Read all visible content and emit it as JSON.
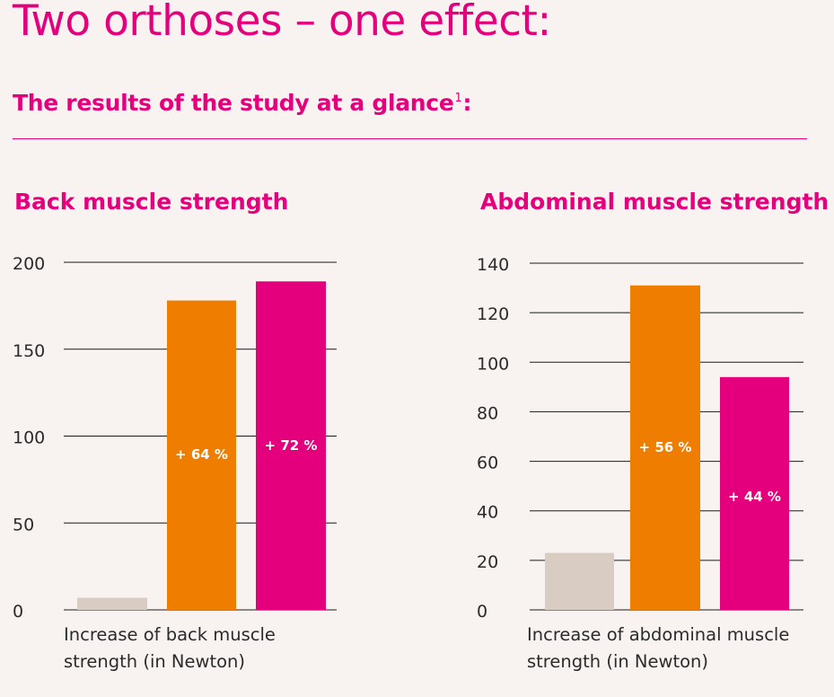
{
  "colors": {
    "accent": "#e4007c",
    "orange": "#ef7d00",
    "beige": "#d8ccc3",
    "text": "#2b2b2b",
    "grid": "#1a1a1a"
  },
  "header": {
    "title": "Two orthoses – one effect:",
    "subtitle": "The results of the study at a glance",
    "footnote_mark": "1",
    "subtitle_suffix": ":"
  },
  "chart_data": [
    {
      "type": "bar",
      "title": "Back muscle strength",
      "xlabel": "Increase of back muscle strength (in Newton)",
      "ylim": [
        0,
        200
      ],
      "yticks": [
        0,
        50,
        100,
        150,
        200
      ],
      "grid": true,
      "series": [
        {
          "values": [
            7,
            178,
            189
          ],
          "colors": [
            "#d8ccc3",
            "#ef7d00",
            "#e4007c"
          ]
        }
      ],
      "annotations": [
        "",
        "+ 64 %",
        "+ 72 %"
      ],
      "annotation_values": [
        0,
        90,
        95
      ]
    },
    {
      "type": "bar",
      "title": "Abdominal muscle strength",
      "xlabel": "Increase of abdominal muscle strength (in Newton)",
      "ylim": [
        0,
        140
      ],
      "yticks": [
        0,
        20,
        40,
        60,
        80,
        100,
        120,
        140
      ],
      "grid": true,
      "series": [
        {
          "values": [
            23,
            131,
            94
          ],
          "colors": [
            "#d8ccc3",
            "#ef7d00",
            "#e4007c"
          ]
        }
      ],
      "annotations": [
        "",
        "+ 56 %",
        "+ 44 %"
      ],
      "annotation_values": [
        0,
        66,
        46
      ]
    }
  ]
}
